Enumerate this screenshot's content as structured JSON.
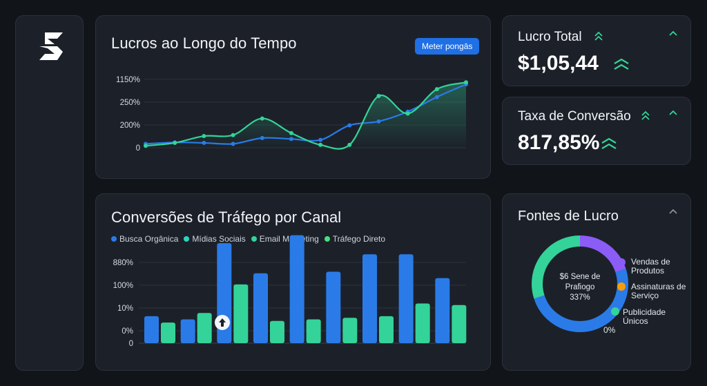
{
  "sidebar": {
    "logo_icon": "s-logo-icon"
  },
  "profit_chart": {
    "title": "Lucros ao Longo do Tempo",
    "button_label": "Meter pongās"
  },
  "traffic_chart": {
    "title": "Conversões de Tráfego por Canal"
  },
  "lucro_total": {
    "title": "Lucro Total",
    "value": "$1,05,44",
    "trend_icon": "double-chevron-up-icon",
    "collapse_icon": "chevron-up-icon"
  },
  "taxa_conversao": {
    "title": "Taxa de Conversão",
    "value": "817,85%",
    "trend_icon": "double-chevron-up-icon",
    "collapse_icon": "chevron-up-icon"
  },
  "fontes": {
    "title": "Fontes de Lucro",
    "center_line1": "$6 Sene de",
    "center_line2": "Prafiogo",
    "center_line3": "337%",
    "zero_label": "0%",
    "collapse_icon": "chevron-up-icon"
  },
  "colors": {
    "blue": "#2a7be8",
    "green": "#34d399",
    "purple": "#8b5cf6",
    "orange": "#f59e0b",
    "teal": "#2dd4bf",
    "button": "#1f6fe5"
  },
  "chart_data": [
    {
      "type": "line",
      "title": "Lucros ao Longo do Tempo",
      "y_tick_labels": [
        "1150%",
        "250%",
        "200%",
        "0"
      ],
      "series": [
        {
          "values": [
            0.4,
            0.55,
            0.5,
            0.4,
            1.0,
            0.9,
            0.8,
            2.3,
            2.7,
            3.7,
            5.2,
            6.5
          ]
        },
        {
          "values": [
            0.2,
            0.5,
            1.2,
            1.3,
            3.0,
            1.5,
            0.3,
            0.3,
            5.3,
            3.5,
            6.0,
            6.7
          ]
        }
      ]
    },
    {
      "type": "bar",
      "title": "Conversões de Tráfego por Canal",
      "legend": [
        "Busca Orgânica",
        "Mídias Sociais",
        "Email Marketing",
        "Tráfego Direto"
      ],
      "y_tick_labels": [
        "880%",
        "100%",
        "10%",
        "0%",
        "0"
      ],
      "series": [
        {
          "name": "Busca Orgânica",
          "values": [
            1.7,
            1.5,
            6.3,
            4.4,
            6.8,
            4.5,
            5.6,
            5.6,
            4.1
          ]
        },
        {
          "name": "Email Marketing",
          "values": [
            1.3,
            1.9,
            3.7,
            1.4,
            1.5,
            1.6,
            1.7,
            2.5,
            2.4
          ]
        }
      ]
    },
    {
      "type": "pie",
      "title": "Fontes de Lucro",
      "categories": [
        "Vendas de Produtos",
        "Assinaturas de Serviço",
        "Publicidade Únicos"
      ],
      "values": [
        20,
        50,
        30
      ]
    }
  ]
}
